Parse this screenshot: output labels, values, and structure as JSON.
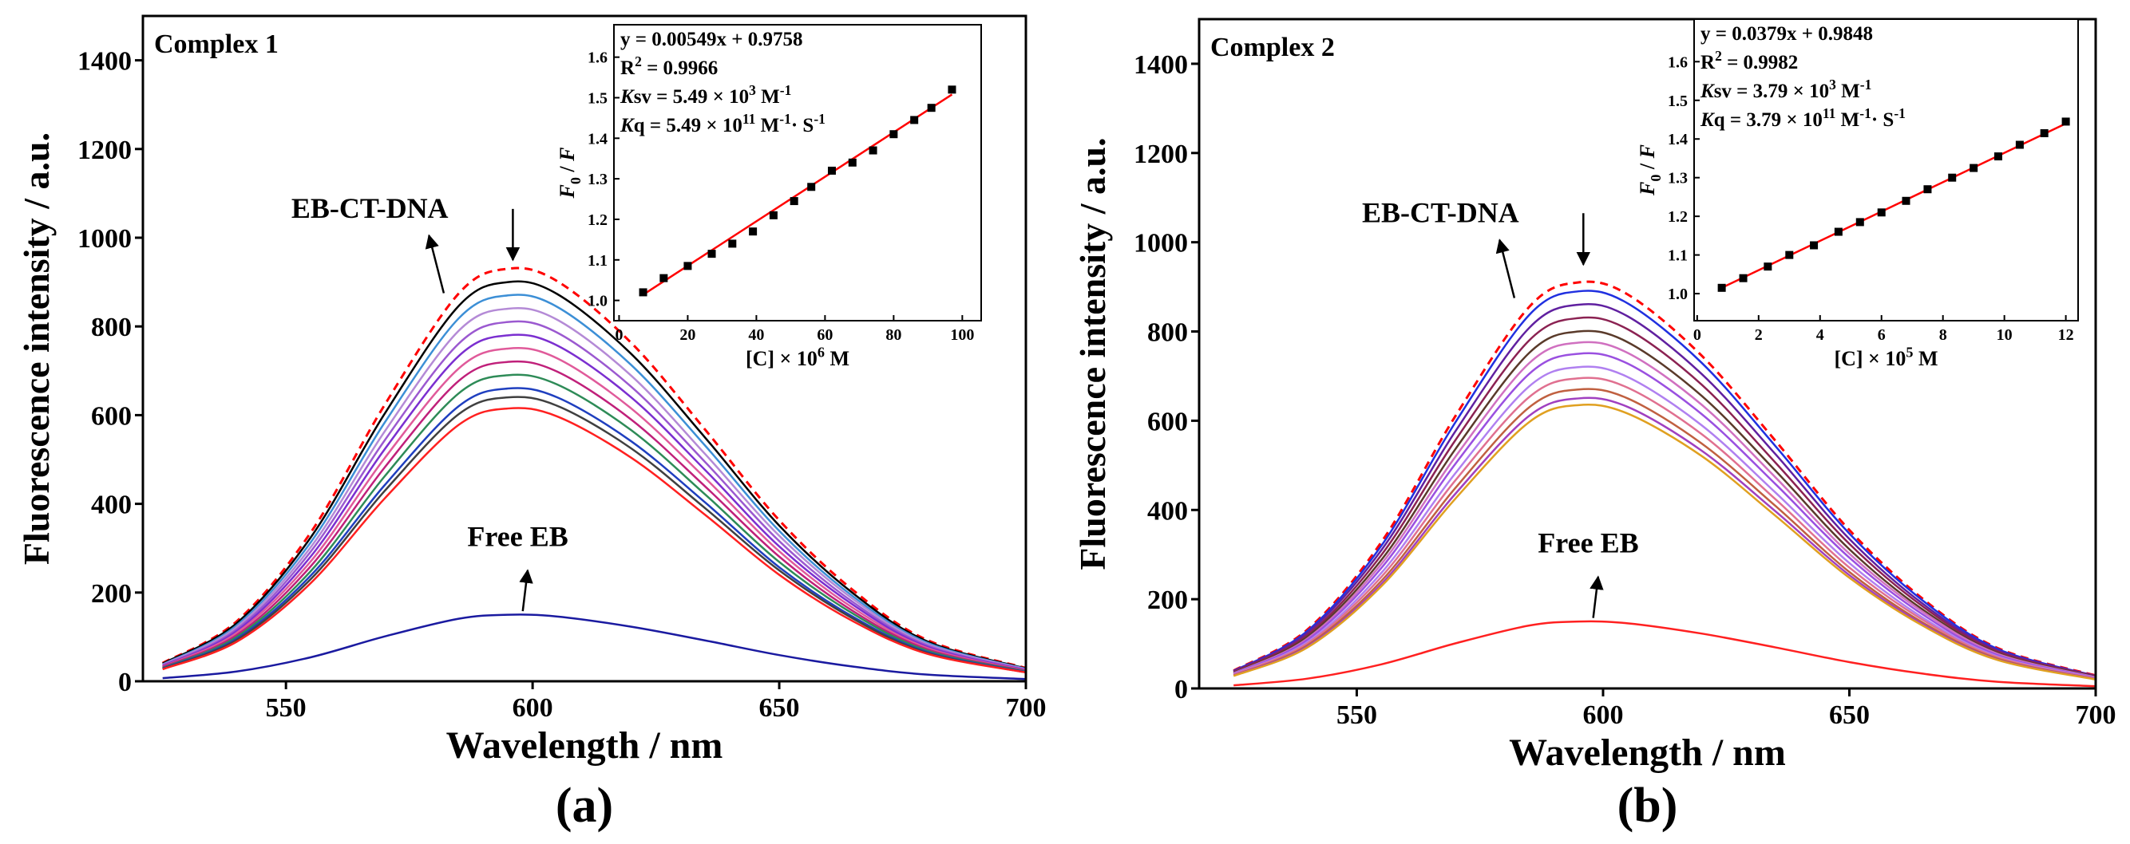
{
  "chart_data": [
    {
      "type": "line",
      "title": "Complex 1",
      "panel_label": "(a)",
      "xlabel": "Wavelength / nm",
      "ylabel": "Fluorescence intensity / a.u.",
      "annotations": [
        "EB-CT-DNA",
        "Free EB"
      ],
      "xlim": [
        521,
        700
      ],
      "ylim": [
        0,
        1500
      ],
      "xticks": [
        550,
        600,
        650,
        700
      ],
      "yticks": [
        0,
        200,
        400,
        600,
        800,
        1000,
        1200,
        1400
      ],
      "x": [
        525,
        540,
        555,
        570,
        585,
        595,
        605,
        620,
        635,
        650,
        665,
        680,
        700
      ],
      "series": [
        {
          "color": "#ff0000",
          "dash": true,
          "values": [
            41,
            135,
            335,
            623,
            874,
            930,
            902,
            763,
            567,
            363,
            205,
            93,
            30
          ]
        },
        {
          "color": "#000000",
          "values": [
            40,
            131,
            324,
            603,
            846,
            900,
            873,
            738,
            549,
            351,
            198,
            90,
            29
          ]
        },
        {
          "color": "#3c8fd6",
          "values": [
            38,
            126,
            313,
            583,
            818,
            870,
            844,
            713,
            531,
            339,
            191,
            87,
            28
          ]
        },
        {
          "color": "#b48ad6",
          "values": [
            37,
            122,
            302,
            563,
            790,
            840,
            815,
            689,
            512,
            328,
            185,
            84,
            27
          ]
        },
        {
          "color": "#9b59d0",
          "values": [
            36,
            117,
            292,
            543,
            761,
            810,
            786,
            664,
            494,
            316,
            178,
            81,
            26
          ]
        },
        {
          "color": "#7b2fd0",
          "values": [
            34,
            113,
            281,
            523,
            733,
            780,
            757,
            640,
            476,
            304,
            172,
            78,
            25
          ]
        },
        {
          "color": "#e05a9a",
          "values": [
            33,
            109,
            270,
            503,
            705,
            750,
            728,
            615,
            458,
            293,
            165,
            75,
            24
          ]
        },
        {
          "color": "#c0207a",
          "values": [
            32,
            104,
            259,
            482,
            677,
            720,
            698,
            590,
            439,
            281,
            158,
            72,
            23
          ]
        },
        {
          "color": "#2e8b57",
          "values": [
            30,
            100,
            248,
            462,
            649,
            690,
            669,
            566,
            421,
            269,
            152,
            69,
            22
          ]
        },
        {
          "color": "#1f3fbf",
          "values": [
            29,
            96,
            238,
            442,
            620,
            660,
            640,
            541,
            403,
            257,
            145,
            66,
            21
          ]
        },
        {
          "color": "#404040",
          "values": [
            28,
            93,
            230,
            429,
            602,
            640,
            621,
            525,
            390,
            250,
            141,
            64,
            20
          ]
        },
        {
          "color": "#ff2020",
          "values": [
            27,
            89,
            221,
            412,
            578,
            615,
            597,
            504,
            375,
            240,
            135,
            62,
            20
          ]
        },
        {
          "color": "#1a1aa0",
          "values": [
            7,
            22,
            54,
            101,
            141,
            150,
            146,
            123,
            92,
            59,
            33,
            15,
            5
          ]
        }
      ]
    },
    {
      "type": "scatter",
      "xlim": [
        -1.5,
        105.5
      ],
      "ylim": [
        0.95,
        1.68
      ],
      "xticks": [
        0,
        20,
        40,
        60,
        80,
        100
      ],
      "yticks": [
        {
          "value": 1,
          "label": "1.0"
        },
        1.1,
        1.2,
        1.3,
        1.4,
        1.5,
        1.6
      ],
      "xlabel": [
        {
          "t": "[C] × 10"
        },
        {
          "t": "6",
          "s": "sup"
        },
        {
          "t": " M"
        }
      ],
      "ylabel": [
        {
          "t": "F",
          "s": "i"
        },
        {
          "t": "0",
          "s": "sub"
        },
        {
          "t": " / "
        },
        {
          "t": "F",
          "s": "i"
        }
      ],
      "color": "#000000",
      "line_color": "#ff0000",
      "x": [
        7,
        13,
        20,
        27,
        33,
        39,
        45,
        51,
        56,
        62,
        68,
        74,
        80,
        86,
        91,
        97
      ],
      "values": [
        1.02,
        1.055,
        1.085,
        1.115,
        1.14,
        1.17,
        1.21,
        1.245,
        1.28,
        1.32,
        1.34,
        1.37,
        1.41,
        1.445,
        1.475,
        1.52
      ],
      "fit": {
        "x": [
          7,
          97
        ],
        "y": [
          1.014,
          1.508
        ]
      },
      "text": [
        [
          {
            "t": "y = 0.00549x + 0.9758"
          }
        ],
        [
          {
            "t": "R"
          },
          {
            "t": "2",
            "s": "sup"
          },
          {
            "t": " = 0.9966"
          }
        ],
        [
          {
            "t": "K",
            "s": "i"
          },
          {
            "t": "sv = 5.49 × 10"
          },
          {
            "t": "3",
            "s": "sup"
          },
          {
            "t": " M"
          },
          {
            "t": "-1",
            "s": "sup"
          }
        ],
        [
          {
            "t": "K",
            "s": "i"
          },
          {
            "t": "q = 5.49 × 10"
          },
          {
            "t": "11",
            "s": "sup"
          },
          {
            "t": " M"
          },
          {
            "t": "-1",
            "s": "sup"
          },
          {
            "t": "· S"
          },
          {
            "t": "-1",
            "s": "sup"
          }
        ]
      ]
    },
    {
      "type": "line",
      "title": "Complex 2",
      "panel_label": "(b)",
      "xlabel": "Wavelength / nm",
      "ylabel": "Fluorescence intensity / a.u.",
      "annotations": [
        "EB-CT-DNA",
        "Free EB"
      ],
      "xlim": [
        518,
        700
      ],
      "ylim": [
        0,
        1500
      ],
      "xticks": [
        550,
        600,
        650,
        700
      ],
      "yticks": [
        0,
        200,
        400,
        600,
        800,
        1000,
        1200,
        1400
      ],
      "x": [
        525,
        540,
        555,
        570,
        585,
        595,
        605,
        620,
        635,
        650,
        665,
        680,
        700
      ],
      "series": [
        {
          "color": "#ff0000",
          "dash": true,
          "values": [
            40,
            132,
            328,
            610,
            855,
            910,
            883,
            746,
            555,
            355,
            200,
            91,
            29
          ]
        },
        {
          "color": "#2030e0",
          "values": [
            39,
            129,
            320,
            596,
            837,
            890,
            863,
            730,
            543,
            347,
            196,
            89,
            28
          ]
        },
        {
          "color": "#6020a0",
          "values": [
            38,
            125,
            310,
            576,
            808,
            860,
            834,
            705,
            525,
            335,
            189,
            86,
            28
          ]
        },
        {
          "color": "#8b2252",
          "values": [
            37,
            120,
            299,
            556,
            780,
            830,
            805,
            681,
            506,
            324,
            183,
            83,
            27
          ]
        },
        {
          "color": "#5a3a2a",
          "values": [
            35,
            116,
            288,
            536,
            752,
            800,
            776,
            656,
            488,
            312,
            176,
            80,
            26
          ]
        },
        {
          "color": "#d070c0",
          "values": [
            34,
            112,
            279,
            519,
            729,
            775,
            752,
            636,
            473,
            302,
            171,
            78,
            25
          ]
        },
        {
          "color": "#9a50e0",
          "values": [
            33,
            109,
            270,
            503,
            705,
            750,
            728,
            615,
            458,
            293,
            165,
            75,
            24
          ]
        },
        {
          "color": "#b080f0",
          "values": [
            32,
            104,
            259,
            482,
            677,
            720,
            698,
            590,
            439,
            281,
            158,
            72,
            23
          ]
        },
        {
          "color": "#e07090",
          "values": [
            31,
            101,
            250,
            466,
            653,
            695,
            674,
            570,
            424,
            271,
            153,
            70,
            22
          ]
        },
        {
          "color": "#c06040",
          "values": [
            29,
            97,
            241,
            449,
            630,
            670,
            650,
            549,
            409,
            261,
            147,
            67,
            21
          ]
        },
        {
          "color": "#a040c0",
          "values": [
            29,
            94,
            234,
            436,
            611,
            650,
            631,
            533,
            397,
            254,
            143,
            65,
            21
          ]
        },
        {
          "color": "#e0a020",
          "values": [
            28,
            92,
            229,
            425,
            597,
            635,
            616,
            521,
            387,
            248,
            140,
            64,
            20
          ]
        },
        {
          "color": "#ff2020",
          "values": [
            7,
            22,
            54,
            101,
            141,
            150,
            146,
            123,
            92,
            59,
            33,
            15,
            5
          ]
        }
      ]
    },
    {
      "type": "scatter",
      "xlim": [
        -0.1,
        12.4
      ],
      "ylim": [
        0.93,
        1.71
      ],
      "xticks": [
        0,
        2,
        4,
        6,
        8,
        10,
        12
      ],
      "yticks": [
        {
          "value": 1,
          "label": "1.0"
        },
        1.1,
        1.2,
        1.3,
        1.4,
        1.5,
        1.6
      ],
      "xlabel": [
        {
          "t": "[C] × 10"
        },
        {
          "t": "5",
          "s": "sup"
        },
        {
          "t": " M"
        }
      ],
      "ylabel": [
        {
          "t": "F",
          "s": "i"
        },
        {
          "t": "0",
          "s": "sub"
        },
        {
          "t": " / "
        },
        {
          "t": "F",
          "s": "i"
        }
      ],
      "color": "#000000",
      "line_color": "#ff0000",
      "x": [
        0.8,
        1.5,
        2.3,
        3.0,
        3.8,
        4.6,
        5.3,
        6.0,
        6.8,
        7.5,
        8.3,
        9.0,
        9.8,
        10.5,
        11.3,
        12.0
      ],
      "values": [
        1.015,
        1.04,
        1.07,
        1.1,
        1.125,
        1.16,
        1.185,
        1.21,
        1.24,
        1.27,
        1.3,
        1.325,
        1.355,
        1.385,
        1.415,
        1.445
      ],
      "fit": {
        "x": [
          0.8,
          12
        ],
        "y": [
          1.015,
          1.44
        ]
      },
      "text": [
        [
          {
            "t": "y = 0.0379x + 0.9848"
          }
        ],
        [
          {
            "t": "R"
          },
          {
            "t": "2",
            "s": "sup"
          },
          {
            "t": " = 0.9982"
          }
        ],
        [
          {
            "t": "K",
            "s": "i"
          },
          {
            "t": "sv = 3.79 × 10"
          },
          {
            "t": "3",
            "s": "sup"
          },
          {
            "t": " M"
          },
          {
            "t": "-1",
            "s": "sup"
          }
        ],
        [
          {
            "t": "K",
            "s": "i"
          },
          {
            "t": "q = 3.79 × 10"
          },
          {
            "t": "11",
            "s": "sup"
          },
          {
            "t": " M"
          },
          {
            "t": "-1",
            "s": "sup"
          },
          {
            "t": "· S"
          },
          {
            "t": "-1",
            "s": "sup"
          }
        ]
      ]
    }
  ]
}
